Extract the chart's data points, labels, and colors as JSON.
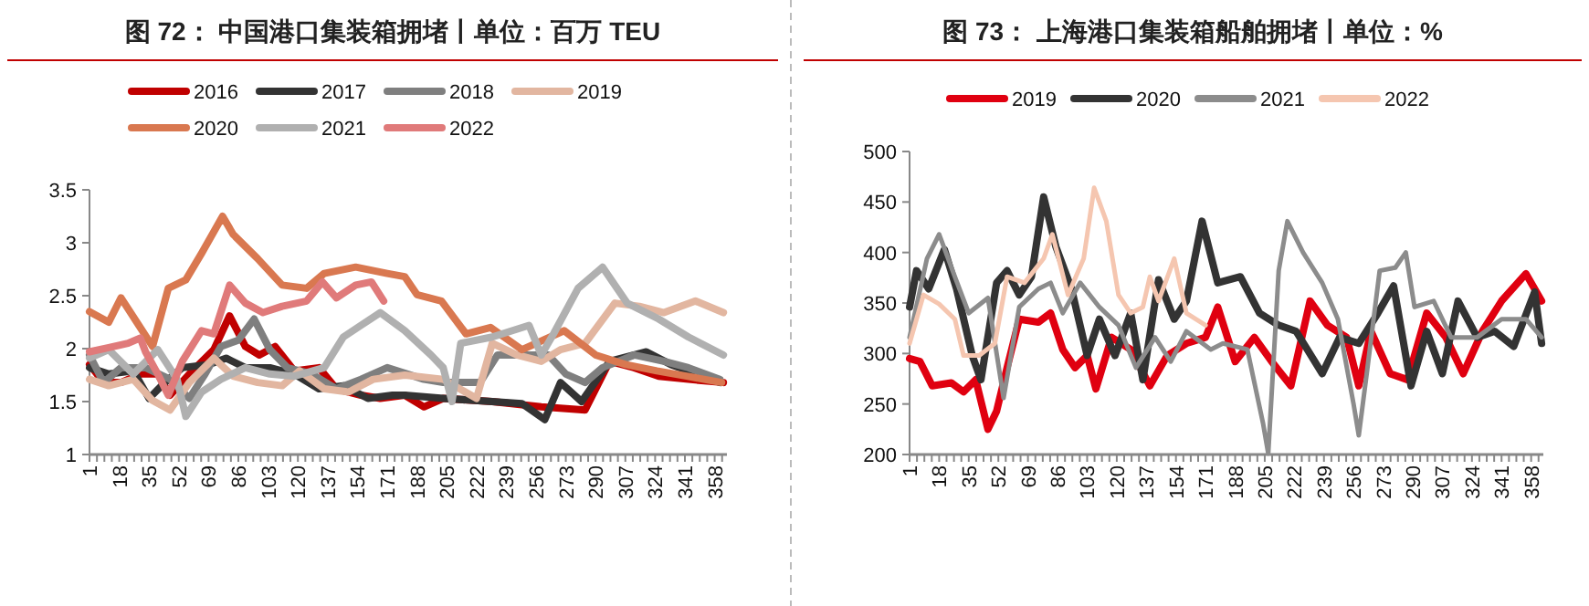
{
  "chart_data": [
    {
      "type": "line",
      "title": "图 72：  中国港口集装箱拥堵丨单位：百万 TEU",
      "legend": "top",
      "xlim": [
        1,
        365
      ],
      "xticks": [
        1,
        18,
        35,
        52,
        69,
        86,
        103,
        120,
        137,
        154,
        171,
        188,
        205,
        222,
        239,
        256,
        273,
        290,
        307,
        324,
        341,
        358
      ],
      "ylim": [
        1,
        3.5
      ],
      "yticks": [
        1,
        1.5,
        2,
        2.5,
        3,
        3.5
      ],
      "series": [
        {
          "name": "2016",
          "color": "#c00000",
          "x": [
            1,
            9,
            19,
            30,
            40,
            47,
            58,
            72,
            81,
            90,
            98,
            107,
            118,
            132,
            142,
            156,
            167,
            181,
            192,
            203,
            231,
            259,
            284,
            298,
            312,
            326,
            343,
            363
          ],
          "values": [
            1.85,
            1.68,
            1.68,
            1.76,
            1.76,
            1.56,
            1.76,
            1.99,
            2.31,
            2.02,
            1.94,
            2.02,
            1.79,
            1.82,
            1.62,
            1.56,
            1.53,
            1.56,
            1.45,
            1.53,
            1.5,
            1.45,
            1.42,
            1.88,
            1.82,
            1.74,
            1.71,
            1.68
          ]
        },
        {
          "name": "2017",
          "color": "#333333",
          "x": [
            1,
            12,
            26,
            35,
            44,
            54,
            69,
            79,
            90,
            104,
            118,
            132,
            146,
            160,
            174,
            181,
            203,
            231,
            248,
            261,
            270,
            282,
            298,
            319,
            333,
            343,
            361
          ],
          "values": [
            1.82,
            1.76,
            1.79,
            1.53,
            1.68,
            1.82,
            1.85,
            1.91,
            1.82,
            1.82,
            1.76,
            1.62,
            1.65,
            1.53,
            1.56,
            1.56,
            1.53,
            1.5,
            1.48,
            1.33,
            1.68,
            1.5,
            1.88,
            1.97,
            1.85,
            1.79,
            1.68
          ]
        },
        {
          "name": "2018",
          "color": "#7f7f7f",
          "x": [
            1,
            9,
            19,
            33,
            47,
            58,
            67,
            76,
            86,
            95,
            104,
            114,
            128,
            142,
            156,
            171,
            192,
            203,
            224,
            234,
            248,
            263,
            273,
            284,
            294,
            312,
            329,
            343,
            361
          ],
          "values": [
            1.94,
            1.68,
            1.82,
            1.82,
            1.71,
            1.53,
            1.76,
            2.02,
            2.08,
            2.28,
            1.99,
            1.82,
            1.76,
            1.62,
            1.71,
            1.82,
            1.71,
            1.68,
            1.68,
            1.94,
            1.94,
            1.94,
            1.76,
            1.68,
            1.82,
            1.94,
            1.88,
            1.82,
            1.71
          ]
        },
        {
          "name": "2019",
          "color": "#e2b6a0",
          "x": [
            1,
            12,
            26,
            37,
            47,
            58,
            72,
            83,
            97,
            111,
            121,
            135,
            149,
            163,
            181,
            203,
            222,
            231,
            245,
            259,
            270,
            284,
            301,
            315,
            329,
            347,
            363
          ],
          "values": [
            1.71,
            1.65,
            1.71,
            1.51,
            1.42,
            1.68,
            1.91,
            1.74,
            1.68,
            1.65,
            1.79,
            1.62,
            1.59,
            1.71,
            1.75,
            1.71,
            1.53,
            2.05,
            1.94,
            1.88,
            1.99,
            2.05,
            2.43,
            2.4,
            2.34,
            2.45,
            2.34
          ]
        },
        {
          "name": "2020",
          "color": "#d97850",
          "x": [
            1,
            12,
            19,
            28,
            37,
            46,
            56,
            65,
            77,
            83,
            97,
            111,
            125,
            135,
            153,
            171,
            181,
            188,
            202,
            216,
            230,
            248,
            272,
            290,
            307,
            325,
            342,
            362
          ],
          "values": [
            2.35,
            2.25,
            2.48,
            2.25,
            2.02,
            2.57,
            2.65,
            2.9,
            3.25,
            3.08,
            2.85,
            2.6,
            2.57,
            2.71,
            2.77,
            2.71,
            2.68,
            2.51,
            2.45,
            2.14,
            2.2,
            1.99,
            2.17,
            1.94,
            1.85,
            1.79,
            1.74,
            1.68
          ]
        },
        {
          "name": "2021",
          "color": "#b0b0b0",
          "x": [
            1,
            12,
            26,
            40,
            51,
            56,
            65,
            76,
            90,
            104,
            118,
            135,
            146,
            156,
            167,
            181,
            196,
            203,
            208,
            213,
            231,
            252,
            259,
            266,
            280,
            294,
            308,
            326,
            343,
            363
          ],
          "values": [
            1.91,
            1.99,
            1.76,
            1.99,
            1.71,
            1.36,
            1.59,
            1.71,
            1.82,
            1.76,
            1.74,
            1.82,
            2.11,
            2.22,
            2.34,
            2.17,
            1.94,
            1.82,
            1.5,
            2.05,
            2.11,
            2.22,
            1.94,
            2.14,
            2.57,
            2.77,
            2.43,
            2.28,
            2.11,
            1.94
          ]
        },
        {
          "name": "2022",
          "color": "#e07a7a",
          "x": [
            1,
            12,
            23,
            30,
            33,
            40,
            46,
            54,
            65,
            72,
            81,
            90,
            100,
            111,
            125,
            134,
            142,
            153,
            162,
            169
          ],
          "values": [
            1.97,
            2.01,
            2.05,
            2.1,
            1.97,
            1.76,
            1.56,
            1.88,
            2.17,
            2.14,
            2.6,
            2.43,
            2.34,
            2.4,
            2.45,
            2.63,
            2.48,
            2.6,
            2.63,
            2.45
          ]
        }
      ]
    },
    {
      "type": "line",
      "title": "图 73：  上海港口集装箱船舶拥堵丨单位：%",
      "legend": "top",
      "xlim": [
        1,
        365
      ],
      "xticks": [
        1,
        18,
        35,
        52,
        69,
        86,
        103,
        120,
        137,
        154,
        171,
        188,
        205,
        222,
        239,
        256,
        273,
        290,
        307,
        324,
        341,
        358
      ],
      "ylim": [
        200,
        500
      ],
      "yticks": [
        200,
        250,
        300,
        350,
        400,
        450,
        500
      ],
      "series": [
        {
          "name": "2019",
          "color": "#e00010",
          "x": [
            1,
            7,
            14,
            25,
            32,
            39,
            46,
            51,
            57,
            64,
            75,
            82,
            89,
            96,
            103,
            108,
            117,
            128,
            139,
            149,
            160,
            171,
            178,
            188,
            199,
            209,
            220,
            231,
            241,
            252,
            259,
            266,
            277,
            287,
            298,
            309,
            319,
            330,
            341,
            355,
            364
          ],
          "values": [
            295,
            292,
            268,
            271,
            262,
            274,
            225,
            243,
            286,
            334,
            331,
            340,
            304,
            286,
            298,
            265,
            316,
            304,
            268,
            298,
            310,
            316,
            346,
            292,
            316,
            292,
            268,
            352,
            328,
            316,
            268,
            322,
            280,
            274,
            340,
            316,
            280,
            322,
            352,
            379,
            352
          ]
        },
        {
          "name": "2020",
          "color": "#333333",
          "x": [
            1,
            5,
            12,
            21,
            28,
            37,
            42,
            51,
            57,
            64,
            71,
            78,
            85,
            94,
            103,
            110,
            119,
            128,
            135,
            144,
            153,
            160,
            169,
            178,
            191,
            202,
            213,
            223,
            238,
            248,
            259,
            270,
            279,
            289,
            298,
            307,
            316,
            327,
            337,
            348,
            360,
            364
          ],
          "values": [
            346,
            382,
            364,
            403,
            364,
            298,
            274,
            370,
            382,
            358,
            376,
            455,
            406,
            364,
            298,
            334,
            298,
            340,
            274,
            373,
            334,
            352,
            431,
            370,
            376,
            340,
            328,
            322,
            280,
            316,
            310,
            340,
            367,
            268,
            322,
            280,
            352,
            316,
            322,
            307,
            361,
            310
          ]
        },
        {
          "name": "2021",
          "color": "#8c8c8c",
          "x": [
            1,
            11,
            18,
            27,
            35,
            46,
            55,
            64,
            75,
            82,
            89,
            99,
            110,
            121,
            131,
            142,
            151,
            160,
            174,
            181,
            195,
            204,
            207,
            213,
            218,
            227,
            238,
            247,
            256,
            259,
            264,
            271,
            280,
            286,
            291,
            302,
            312,
            327,
            341,
            355,
            364
          ],
          "values": [
            316,
            394,
            418,
            376,
            340,
            355,
            256,
            346,
            364,
            370,
            340,
            370,
            346,
            328,
            286,
            316,
            292,
            322,
            304,
            310,
            304,
            231,
            201,
            382,
            431,
            400,
            370,
            334,
            250,
            219,
            286,
            382,
            385,
            400,
            346,
            352,
            316,
            316,
            334,
            334,
            316
          ]
        },
        {
          "name": "2022",
          "color": "#f5c6b0",
          "x": [
            1,
            9,
            18,
            27,
            32,
            41,
            50,
            57,
            67,
            78,
            83,
            92,
            101,
            107,
            114,
            121,
            128,
            135,
            139,
            144,
            153,
            160,
            171
          ],
          "values": [
            310,
            358,
            349,
            334,
            298,
            298,
            310,
            376,
            370,
            394,
            418,
            358,
            394,
            464,
            431,
            358,
            340,
            346,
            376,
            352,
            394,
            340,
            328
          ]
        }
      ]
    }
  ]
}
